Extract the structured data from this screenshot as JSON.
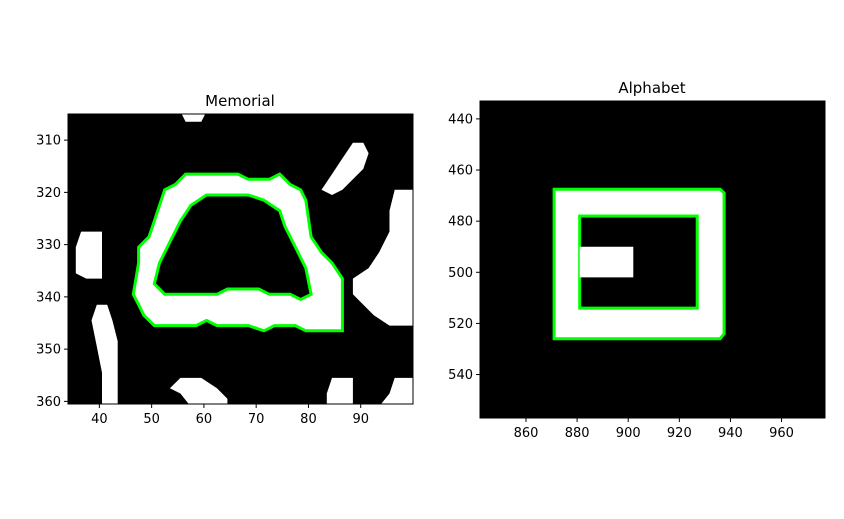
{
  "chart_data": [
    {
      "type": "heatmap",
      "title": "Memorial",
      "xlim": [
        34,
        100
      ],
      "ylim": [
        360.5,
        305
      ],
      "xticks": [
        40,
        50,
        60,
        70,
        80,
        90
      ],
      "yticks": [
        310,
        320,
        330,
        340,
        350,
        360
      ],
      "image_colors": {
        "background": "#000000",
        "foreground": "#ffffff",
        "contour": "#00ff00"
      },
      "blobs": [
        {
          "name": "main-shape",
          "outer": [
            [
              56.5,
              316.5
            ],
            [
              66.5,
              316.5
            ],
            [
              68.5,
              317.5
            ],
            [
              72.5,
              317.5
            ],
            [
              74.5,
              316.5
            ],
            [
              76.5,
              318.5
            ],
            [
              78.5,
              319.5
            ],
            [
              79.5,
              321.5
            ],
            [
              80.5,
              328.5
            ],
            [
              82.5,
              331.5
            ],
            [
              84.5,
              333.5
            ],
            [
              86.5,
              336.5
            ],
            [
              86.5,
              340.5
            ],
            [
              86.5,
              346.5
            ],
            [
              79.5,
              346.5
            ],
            [
              77.5,
              345.5
            ],
            [
              73.5,
              345.5
            ],
            [
              71.5,
              346.5
            ],
            [
              68.5,
              345.5
            ],
            [
              62.5,
              345.5
            ],
            [
              60.5,
              344.5
            ],
            [
              58.5,
              345.5
            ],
            [
              50.5,
              345.5
            ],
            [
              48.5,
              343.5
            ],
            [
              47.5,
              341.5
            ],
            [
              46.5,
              339.5
            ],
            [
              47.5,
              333.5
            ],
            [
              47.5,
              330.5
            ],
            [
              49.5,
              328.5
            ],
            [
              50.5,
              325.5
            ],
            [
              51.5,
              322.5
            ],
            [
              52.5,
              319.5
            ],
            [
              54.5,
              318.5
            ]
          ],
          "inner": [
            [
              60.5,
              320.5
            ],
            [
              68.5,
              320.5
            ],
            [
              71.5,
              321.5
            ],
            [
              74.5,
              323.5
            ],
            [
              75.5,
              326.5
            ],
            [
              77.5,
              330.5
            ],
            [
              79.5,
              334.5
            ],
            [
              80.5,
              339.5
            ],
            [
              78.5,
              340.5
            ],
            [
              76.5,
              339.5
            ],
            [
              72.5,
              339.5
            ],
            [
              70.5,
              338.5
            ],
            [
              64.5,
              338.5
            ],
            [
              62.5,
              339.5
            ],
            [
              52.5,
              339.5
            ],
            [
              50.5,
              337.5
            ],
            [
              51.5,
              333.5
            ],
            [
              53.5,
              329.5
            ],
            [
              55.5,
              325.5
            ],
            [
              57.5,
              322.5
            ]
          ]
        },
        {
          "name": "top-right",
          "outer": [
            [
              88.5,
              310.5
            ],
            [
              90.5,
              310.5
            ],
            [
              91.5,
              312.5
            ],
            [
              90.5,
              315.5
            ],
            [
              88.5,
              317.5
            ],
            [
              86.5,
              319.5
            ],
            [
              84.5,
              320.5
            ],
            [
              82.5,
              319.5
            ],
            [
              84.5,
              316.5
            ],
            [
              86.5,
              313.5
            ]
          ]
        },
        {
          "name": "right-edge",
          "outer": [
            [
              96.5,
              319.5
            ],
            [
              100,
              319.5
            ],
            [
              100,
              345.5
            ],
            [
              95.5,
              345.5
            ],
            [
              92.5,
              343.5
            ],
            [
              90.5,
              341.5
            ],
            [
              88.5,
              339.5
            ],
            [
              88.5,
              336.5
            ],
            [
              91.5,
              334.5
            ],
            [
              93.5,
              331.5
            ],
            [
              95.5,
              327.5
            ],
            [
              95.5,
              323.5
            ]
          ]
        },
        {
          "name": "left-upper",
          "outer": [
            [
              36.5,
              327.5
            ],
            [
              40.5,
              327.5
            ],
            [
              40.5,
              330.5
            ],
            [
              40.5,
              336.5
            ],
            [
              37.5,
              336.5
            ],
            [
              35.5,
              335.5
            ],
            [
              35.5,
              330.5
            ]
          ]
        },
        {
          "name": "left-lower",
          "outer": [
            [
              39.5,
              341.5
            ],
            [
              41.5,
              341.5
            ],
            [
              42.5,
              344.5
            ],
            [
              43.5,
              348.5
            ],
            [
              43.5,
              356.5
            ],
            [
              43.5,
              361
            ],
            [
              40.5,
              361
            ],
            [
              40.5,
              354.5
            ],
            [
              39.5,
              349.5
            ],
            [
              38.5,
              344.5
            ]
          ]
        },
        {
          "name": "top-strip",
          "outer": [
            [
              55.5,
              304.5
            ],
            [
              60.5,
              304.5
            ],
            [
              59.5,
              306.5
            ],
            [
              56.5,
              306.5
            ]
          ]
        },
        {
          "name": "bottom-left",
          "outer": [
            [
              55.5,
              355.5
            ],
            [
              59.5,
              355.5
            ],
            [
              62.5,
              357.5
            ],
            [
              64.5,
              359.5
            ],
            [
              64.5,
              361
            ],
            [
              57.5,
              361
            ],
            [
              55.5,
              358.5
            ],
            [
              53.5,
              357.5
            ]
          ]
        },
        {
          "name": "bottom-mid",
          "outer": [
            [
              84.5,
              355.5
            ],
            [
              88.5,
              355.5
            ],
            [
              88.5,
              361
            ],
            [
              83.5,
              361
            ],
            [
              83.5,
              358.5
            ]
          ]
        },
        {
          "name": "bottom-right",
          "outer": [
            [
              96.5,
              355.5
            ],
            [
              100,
              355.5
            ],
            [
              100,
              361
            ],
            [
              93.5,
              361
            ],
            [
              95.5,
              358.5
            ]
          ]
        }
      ]
    },
    {
      "type": "heatmap",
      "title": "Alphabet",
      "xlim": [
        842,
        977
      ],
      "ylim": [
        557,
        433
      ],
      "xticks": [
        860,
        880,
        900,
        920,
        940,
        960
      ],
      "yticks": [
        440,
        460,
        480,
        500,
        520,
        540
      ],
      "image_colors": {
        "background": "#000000",
        "foreground": "#ffffff",
        "contour": "#00ff00"
      },
      "blobs": [
        {
          "name": "square-glyph",
          "outer": [
            [
              871,
              467.5
            ],
            [
              936,
              467.5
            ],
            [
              937.5,
              469
            ],
            [
              937.5,
              524
            ],
            [
              936,
              526
            ],
            [
              871,
              526
            ]
          ],
          "inner": [
            [
              881,
              478
            ],
            [
              927,
              478
            ],
            [
              927,
              514
            ],
            [
              881,
              514
            ]
          ],
          "notch": [
            [
              881,
              490
            ],
            [
              902,
              490
            ],
            [
              902,
              502
            ],
            [
              881,
              502
            ]
          ]
        }
      ]
    }
  ]
}
